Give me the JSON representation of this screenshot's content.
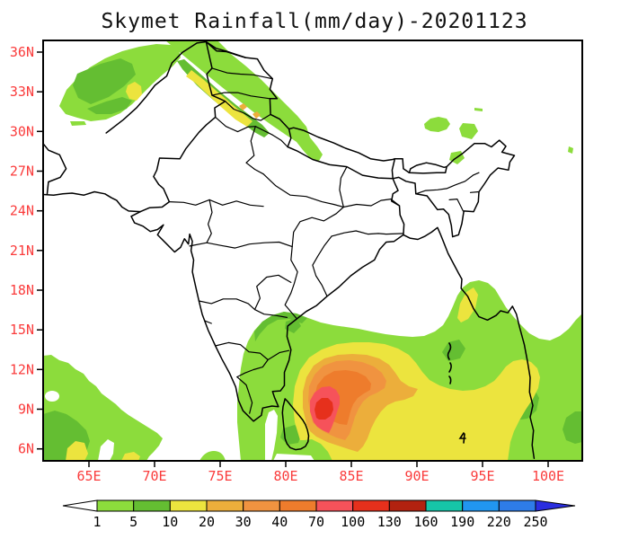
{
  "chart_data": {
    "type": "heatmap",
    "title": "Skymet Rainfall(mm/day)-20201123",
    "source": "Skymet",
    "units": "mm/day",
    "date": "20201123",
    "x_ticks": [
      "65E",
      "70E",
      "75E",
      "80E",
      "85E",
      "90E",
      "95E",
      "100E"
    ],
    "y_ticks": [
      "36N",
      "33N",
      "30N",
      "27N",
      "24N",
      "21N",
      "18N",
      "15N",
      "12N",
      "9N",
      "6N"
    ],
    "lon_range_deg_e": [
      61.5,
      102.6
    ],
    "lat_range_deg_n": [
      5.1,
      36.9
    ],
    "grid": false,
    "axis_label_color": "#fa3c3c",
    "colorbar": {
      "orientation": "horizontal",
      "levels": [
        1,
        5,
        10,
        20,
        30,
        40,
        70,
        100,
        130,
        160,
        190,
        220,
        250
      ],
      "colors": [
        "#8cdc3c",
        "#64be32",
        "#ece43e",
        "#ecae3b",
        "#f09340",
        "#ee7c2c",
        "#f6525a",
        "#e6301c",
        "#b22210",
        "#16c5a8",
        "#2196f0",
        "#2e7ce8"
      ],
      "under_color": "#ffffff",
      "over_color": "#2a2ee0"
    },
    "features": [
      {
        "label": "cyclonic rain maximum over southwest Bay of Bengal east of Sri Lanka",
        "center_lon_e": 82.7,
        "center_lat_n": 9.0,
        "peak_band_mm_day": "100-130"
      },
      {
        "label": "broad rain shield over south Bay of Bengal and Andaman Sea",
        "peak_band_mm_day": "10-20"
      },
      {
        "label": "western Himalaya / north Pakistan rain band",
        "peak_band_mm_day": "20-40"
      },
      {
        "label": "southeast Arabian Sea showers southwest of India",
        "peak_band_mm_day": "10-20"
      },
      {
        "label": "Myanmar coast patch",
        "peak_band_mm_day": "10-20"
      },
      {
        "label": "light rain specks over northeast India / Tibet border",
        "peak_band_mm_day": "1-5"
      }
    ]
  }
}
